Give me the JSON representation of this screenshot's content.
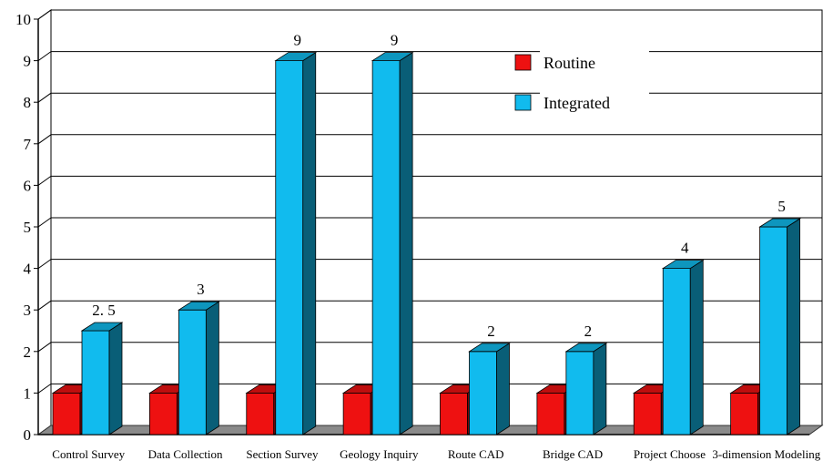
{
  "chart_data": {
    "type": "bar",
    "style": "3d",
    "categories": [
      "Control Survey",
      "Data Collection",
      "Section Survey",
      "Geology Inquiry",
      "Route CAD",
      "Bridge CAD",
      "Project Choose",
      "3-dimension Modeling"
    ],
    "series": [
      {
        "name": "Routine",
        "color": "#ee1111",
        "values": [
          1,
          1,
          1,
          1,
          1,
          1,
          1,
          1
        ]
      },
      {
        "name": "Integrated",
        "color": "#11bbee",
        "values": [
          2.5,
          3,
          9,
          9,
          2,
          2,
          4,
          5
        ]
      }
    ],
    "data_labels": [
      "2. 5",
      "3",
      "9",
      "9",
      "2",
      "2",
      "4",
      "5"
    ],
    "y_ticks": [
      "0",
      "1",
      "2",
      "3",
      "4",
      "5",
      "6",
      "7",
      "8",
      "9",
      "10"
    ],
    "ylim": [
      0,
      10
    ],
    "grid": true,
    "legend_position": "top-right",
    "title": "",
    "xlabel": "",
    "ylabel": ""
  }
}
